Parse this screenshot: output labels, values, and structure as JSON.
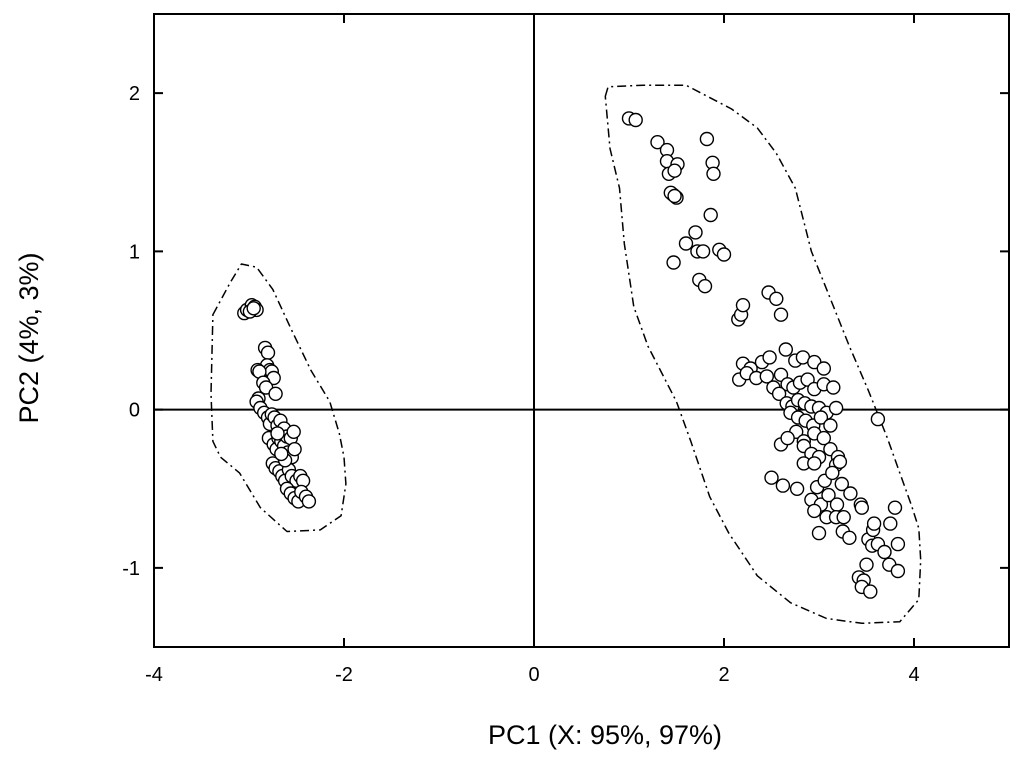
{
  "chart_data": {
    "type": "scatter",
    "title": "",
    "xlabel": "PC1 (X: 95%, 97%)",
    "ylabel": "PC2 (4%, 3%)",
    "xlim": [
      -4,
      5
    ],
    "ylim": [
      -1.5,
      2.5
    ],
    "x_ticks": [
      -4,
      -2,
      0,
      2,
      4
    ],
    "x_tick_labels": [
      "-4",
      "-2",
      "0",
      "2",
      "4"
    ],
    "y_ticks": [
      -1,
      0,
      1,
      2
    ],
    "y_tick_labels": [
      "-1",
      "0",
      "1",
      "2"
    ],
    "grid": false,
    "zero_lines": true,
    "marker": "open-circle",
    "series": [
      {
        "points": [
          [
            -3.05,
            0.61
          ],
          [
            -3.02,
            0.63
          ],
          [
            -2.97,
            0.66
          ],
          [
            -2.94,
            0.65
          ],
          [
            -2.92,
            0.63
          ],
          [
            -2.99,
            0.62
          ],
          [
            -2.95,
            0.64
          ],
          [
            -2.83,
            0.39
          ],
          [
            -2.8,
            0.36
          ],
          [
            -2.81,
            0.28
          ],
          [
            -2.78,
            0.25
          ],
          [
            -2.76,
            0.24
          ],
          [
            -2.74,
            0.2
          ],
          [
            -2.91,
            0.25
          ],
          [
            -2.89,
            0.24
          ],
          [
            -2.85,
            0.17
          ],
          [
            -2.82,
            0.14
          ],
          [
            -2.72,
            0.1
          ],
          [
            -2.9,
            0.07
          ],
          [
            -2.92,
            0.05
          ],
          [
            -2.88,
            0.01
          ],
          [
            -2.84,
            -0.02
          ],
          [
            -2.8,
            -0.05
          ],
          [
            -2.78,
            -0.09
          ],
          [
            -2.76,
            -0.03
          ],
          [
            -2.73,
            -0.05
          ],
          [
            -2.7,
            -0.1
          ],
          [
            -2.67,
            -0.07
          ],
          [
            -2.63,
            -0.12
          ],
          [
            -2.79,
            -0.18
          ],
          [
            -2.74,
            -0.22
          ],
          [
            -2.71,
            -0.25
          ],
          [
            -2.69,
            -0.18
          ],
          [
            -2.66,
            -0.2
          ],
          [
            -2.63,
            -0.23
          ],
          [
            -2.6,
            -0.17
          ],
          [
            -2.56,
            -0.18
          ],
          [
            -2.53,
            -0.14
          ],
          [
            -2.59,
            -0.27
          ],
          [
            -2.55,
            -0.3
          ],
          [
            -2.52,
            -0.25
          ],
          [
            -2.75,
            -0.34
          ],
          [
            -2.72,
            -0.37
          ],
          [
            -2.68,
            -0.39
          ],
          [
            -2.65,
            -0.42
          ],
          [
            -2.62,
            -0.45
          ],
          [
            -2.58,
            -0.38
          ],
          [
            -2.55,
            -0.42
          ],
          [
            -2.5,
            -0.45
          ],
          [
            -2.46,
            -0.42
          ],
          [
            -2.43,
            -0.45
          ],
          [
            -2.6,
            -0.5
          ],
          [
            -2.56,
            -0.53
          ],
          [
            -2.52,
            -0.56
          ],
          [
            -2.48,
            -0.58
          ],
          [
            -2.45,
            -0.52
          ],
          [
            -2.4,
            -0.55
          ],
          [
            -2.37,
            -0.58
          ],
          [
            -2.62,
            -0.32
          ],
          [
            -2.66,
            -0.28
          ],
          [
            -2.7,
            -0.15
          ]
        ]
      },
      {
        "points": [
          [
            1.0,
            1.84
          ],
          [
            1.07,
            1.83
          ],
          [
            1.3,
            1.69
          ],
          [
            1.4,
            1.64
          ],
          [
            1.4,
            1.57
          ],
          [
            1.42,
            1.49
          ],
          [
            1.51,
            1.55
          ],
          [
            1.48,
            1.51
          ],
          [
            1.46,
            1.36
          ],
          [
            1.44,
            1.37
          ],
          [
            1.5,
            1.34
          ],
          [
            1.48,
            1.35
          ],
          [
            1.82,
            1.71
          ],
          [
            1.88,
            1.56
          ],
          [
            1.89,
            1.49
          ],
          [
            1.86,
            1.23
          ],
          [
            1.7,
            1.12
          ],
          [
            1.6,
            1.05
          ],
          [
            1.72,
            1.0
          ],
          [
            1.78,
            1.0
          ],
          [
            1.95,
            1.01
          ],
          [
            2.0,
            0.98
          ],
          [
            1.47,
            0.93
          ],
          [
            1.74,
            0.82
          ],
          [
            1.8,
            0.78
          ],
          [
            2.15,
            0.57
          ],
          [
            2.18,
            0.6
          ],
          [
            2.2,
            0.66
          ],
          [
            2.47,
            0.74
          ],
          [
            2.55,
            0.7
          ],
          [
            2.6,
            0.6
          ],
          [
            2.65,
            0.38
          ],
          [
            2.75,
            0.31
          ],
          [
            2.83,
            0.33
          ],
          [
            2.95,
            0.3
          ],
          [
            3.05,
            0.26
          ],
          [
            2.2,
            0.29
          ],
          [
            2.28,
            0.26
          ],
          [
            2.4,
            0.3
          ],
          [
            2.48,
            0.33
          ],
          [
            2.16,
            0.19
          ],
          [
            2.24,
            0.23
          ],
          [
            2.34,
            0.2
          ],
          [
            2.45,
            0.21
          ],
          [
            2.52,
            0.14
          ],
          [
            2.6,
            0.22
          ],
          [
            2.67,
            0.16
          ],
          [
            2.73,
            0.14
          ],
          [
            2.8,
            0.17
          ],
          [
            2.88,
            0.19
          ],
          [
            2.95,
            0.13
          ],
          [
            3.05,
            0.16
          ],
          [
            3.15,
            0.14
          ],
          [
            2.58,
            0.1
          ],
          [
            2.66,
            0.04
          ],
          [
            2.72,
            0.02
          ],
          [
            2.78,
            0.06
          ],
          [
            2.85,
            0.04
          ],
          [
            2.92,
            0.02
          ],
          [
            3.0,
            0.01
          ],
          [
            3.08,
            -0.02
          ],
          [
            3.18,
            0.01
          ],
          [
            2.7,
            -0.02
          ],
          [
            2.78,
            -0.05
          ],
          [
            2.86,
            -0.07
          ],
          [
            2.94,
            -0.1
          ],
          [
            3.02,
            -0.05
          ],
          [
            3.12,
            -0.1
          ],
          [
            3.62,
            -0.06
          ],
          [
            2.76,
            -0.14
          ],
          [
            2.84,
            -0.2
          ],
          [
            2.95,
            -0.15
          ],
          [
            3.05,
            -0.18
          ],
          [
            2.6,
            -0.22
          ],
          [
            2.67,
            -0.18
          ],
          [
            2.84,
            -0.23
          ],
          [
            2.92,
            -0.28
          ],
          [
            3.0,
            -0.3
          ],
          [
            3.12,
            -0.25
          ],
          [
            3.2,
            -0.3
          ],
          [
            2.84,
            -0.34
          ],
          [
            2.95,
            -0.34
          ],
          [
            3.18,
            -0.35
          ],
          [
            3.22,
            -0.33
          ],
          [
            2.5,
            -0.43
          ],
          [
            2.62,
            -0.48
          ],
          [
            2.77,
            -0.5
          ],
          [
            2.98,
            -0.49
          ],
          [
            3.06,
            -0.45
          ],
          [
            3.14,
            -0.4
          ],
          [
            3.24,
            -0.47
          ],
          [
            3.33,
            -0.53
          ],
          [
            2.92,
            -0.57
          ],
          [
            3.02,
            -0.6
          ],
          [
            3.1,
            -0.54
          ],
          [
            3.19,
            -0.6
          ],
          [
            3.44,
            -0.6
          ],
          [
            2.95,
            -0.64
          ],
          [
            3.08,
            -0.68
          ],
          [
            3.18,
            -0.68
          ],
          [
            3.26,
            -0.68
          ],
          [
            3.45,
            -0.62
          ],
          [
            3.8,
            -0.62
          ],
          [
            3.0,
            -0.78
          ],
          [
            3.25,
            -0.77
          ],
          [
            3.32,
            -0.81
          ],
          [
            3.52,
            -0.82
          ],
          [
            3.57,
            -0.76
          ],
          [
            3.58,
            -0.72
          ],
          [
            3.75,
            -0.72
          ],
          [
            3.56,
            -0.86
          ],
          [
            3.62,
            -0.85
          ],
          [
            3.83,
            -0.85
          ],
          [
            3.69,
            -0.9
          ],
          [
            3.5,
            -0.98
          ],
          [
            3.74,
            -0.98
          ],
          [
            3.83,
            -1.02
          ],
          [
            3.42,
            -1.06
          ],
          [
            3.47,
            -1.08
          ],
          [
            3.45,
            -1.12
          ],
          [
            3.54,
            -1.15
          ]
        ]
      }
    ],
    "outlines": [
      {
        "style": "dash-dot",
        "points": [
          [
            -3.38,
            0.6
          ],
          [
            -3.2,
            0.8
          ],
          [
            -3.08,
            0.92
          ],
          [
            -2.92,
            0.9
          ],
          [
            -2.75,
            0.76
          ],
          [
            -2.55,
            0.5
          ],
          [
            -2.35,
            0.25
          ],
          [
            -2.15,
            0.05
          ],
          [
            -2.05,
            -0.15
          ],
          [
            -2.0,
            -0.3
          ],
          [
            -1.98,
            -0.47
          ],
          [
            -2.03,
            -0.67
          ],
          [
            -2.25,
            -0.76
          ],
          [
            -2.6,
            -0.77
          ],
          [
            -2.88,
            -0.62
          ],
          [
            -3.1,
            -0.4
          ],
          [
            -3.3,
            -0.3
          ],
          [
            -3.38,
            -0.2
          ],
          [
            -3.4,
            0.1
          ],
          [
            -3.38,
            0.6
          ]
        ]
      },
      {
        "style": "dash-dot",
        "points": [
          [
            0.75,
            1.98
          ],
          [
            0.78,
            2.04
          ],
          [
            1.15,
            2.05
          ],
          [
            1.6,
            2.05
          ],
          [
            2.08,
            1.9
          ],
          [
            2.35,
            1.78
          ],
          [
            2.55,
            1.62
          ],
          [
            2.75,
            1.4
          ],
          [
            2.92,
            1.0
          ],
          [
            3.12,
            0.7
          ],
          [
            3.32,
            0.4
          ],
          [
            3.52,
            0.12
          ],
          [
            3.72,
            -0.18
          ],
          [
            3.85,
            -0.4
          ],
          [
            3.97,
            -0.6
          ],
          [
            4.05,
            -0.75
          ],
          [
            4.07,
            -0.95
          ],
          [
            4.05,
            -1.2
          ],
          [
            3.85,
            -1.34
          ],
          [
            3.45,
            -1.35
          ],
          [
            3.08,
            -1.32
          ],
          [
            2.7,
            -1.22
          ],
          [
            2.35,
            -1.05
          ],
          [
            2.05,
            -0.78
          ],
          [
            1.85,
            -0.55
          ],
          [
            1.65,
            -0.2
          ],
          [
            1.5,
            0.05
          ],
          [
            1.2,
            0.4
          ],
          [
            1.05,
            0.65
          ],
          [
            0.95,
            1.05
          ],
          [
            0.9,
            1.4
          ],
          [
            0.8,
            1.65
          ],
          [
            0.75,
            1.98
          ]
        ]
      }
    ]
  }
}
